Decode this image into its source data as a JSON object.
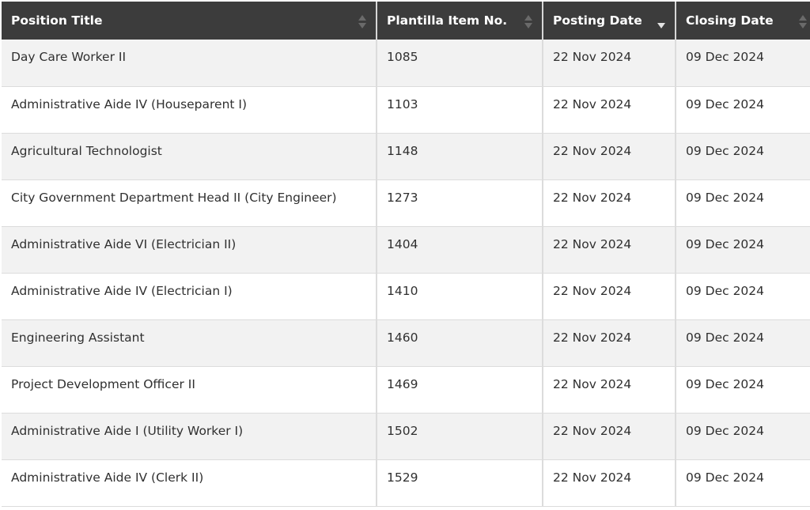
{
  "table": {
    "headers": [
      {
        "label": "Position Title",
        "sort": "none"
      },
      {
        "label": "Plantilla Item No.",
        "sort": "none"
      },
      {
        "label": "Posting Date",
        "sort": "desc"
      },
      {
        "label": "Closing Date",
        "sort": "none"
      }
    ],
    "rows": [
      {
        "title": "Day Care Worker II",
        "item_no": "1085",
        "posting": "22 Nov 2024",
        "closing": "09 Dec 2024"
      },
      {
        "title": "Administrative Aide IV (Houseparent I)",
        "item_no": "1103",
        "posting": "22 Nov 2024",
        "closing": "09 Dec 2024"
      },
      {
        "title": "Agricultural Technologist",
        "item_no": "1148",
        "posting": "22 Nov 2024",
        "closing": "09 Dec 2024"
      },
      {
        "title": "City Government Department Head II (City Engineer)",
        "item_no": "1273",
        "posting": "22 Nov 2024",
        "closing": "09 Dec 2024"
      },
      {
        "title": "Administrative Aide VI (Electrician II)",
        "item_no": "1404",
        "posting": "22 Nov 2024",
        "closing": "09 Dec 2024"
      },
      {
        "title": "Administrative Aide IV (Electrician I)",
        "item_no": "1410",
        "posting": "22 Nov 2024",
        "closing": "09 Dec 2024"
      },
      {
        "title": "Engineering Assistant",
        "item_no": "1460",
        "posting": "22 Nov 2024",
        "closing": "09 Dec 2024"
      },
      {
        "title": "Project Development Officer II",
        "item_no": "1469",
        "posting": "22 Nov 2024",
        "closing": "09 Dec 2024"
      },
      {
        "title": "Administrative Aide I (Utility Worker I)",
        "item_no": "1502",
        "posting": "22 Nov 2024",
        "closing": "09 Dec 2024"
      },
      {
        "title": "Administrative Aide IV (Clerk II)",
        "item_no": "1529",
        "posting": "22 Nov 2024",
        "closing": "09 Dec 2024"
      }
    ]
  },
  "icons": {
    "sort": "sort-arrows-icon"
  },
  "colors": {
    "header_bg": "#3c3c3c",
    "header_text": "#ffffff",
    "row_alt_bg": "#f2f2f2",
    "border": "#dcdcdc"
  }
}
